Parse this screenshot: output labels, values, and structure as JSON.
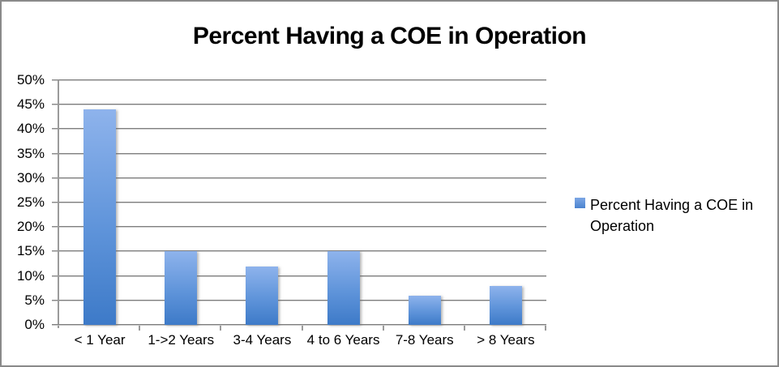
{
  "title": "Percent Having a COE in Operation",
  "legend": {
    "label": "Percent Having a COE in Operation"
  },
  "colors": {
    "bar_top": "#8eb3ec",
    "bar_bottom": "#3d7ac8",
    "gridline": "#7e7e7e",
    "border": "#8a8a8a"
  },
  "chart_data": {
    "type": "bar",
    "title": "Percent Having a COE in Operation",
    "categories": [
      "< 1 Year",
      "1->2 Years",
      "3-4 Years",
      "4 to 6 Years",
      "7-8 Years",
      "> 8 Years"
    ],
    "series": [
      {
        "name": "Percent Having a COE in Operation",
        "values": [
          44,
          15,
          12,
          15,
          6,
          8
        ]
      }
    ],
    "xlabel": "",
    "ylabel": "",
    "ylim": [
      0,
      50
    ],
    "ytick_step": 5,
    "ytick_labels": [
      "0%",
      "5%",
      "10%",
      "15%",
      "20%",
      "25%",
      "30%",
      "35%",
      "40%",
      "45%",
      "50%"
    ],
    "grid": true,
    "legend_position": "right"
  }
}
